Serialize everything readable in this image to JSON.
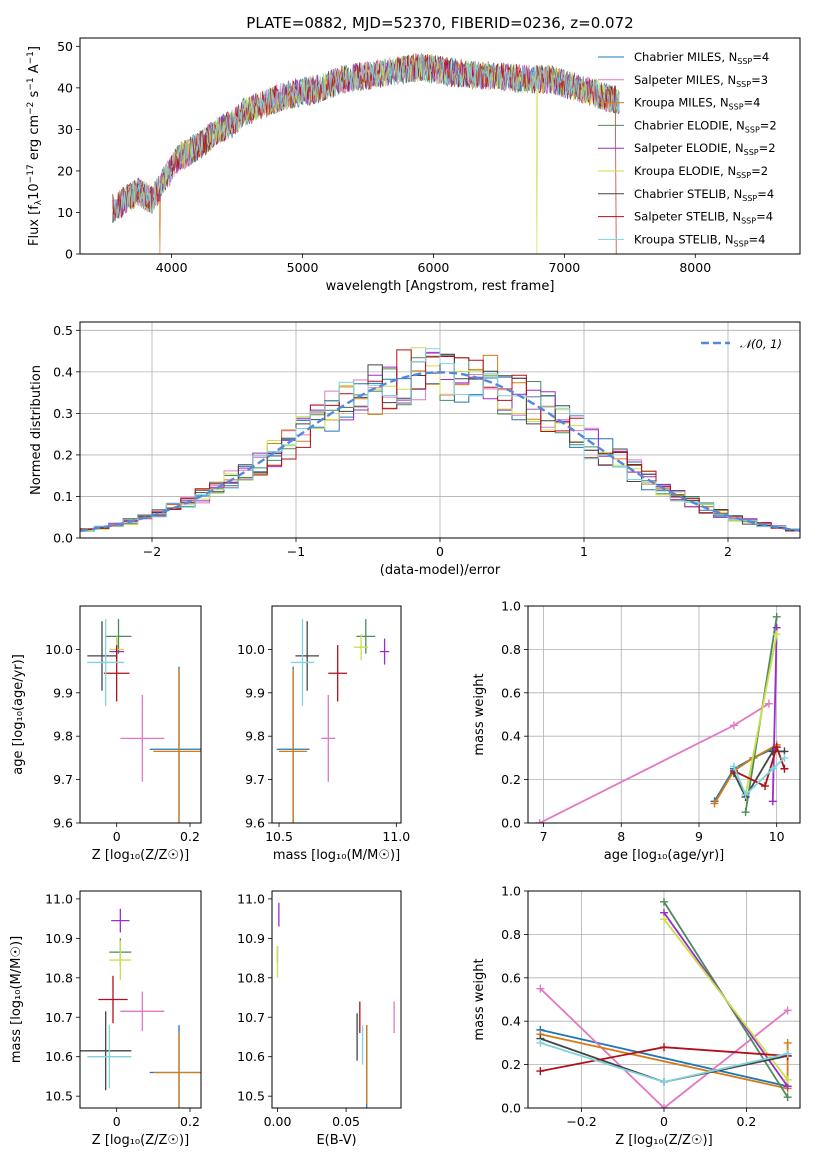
{
  "figure_title": "PLATE=0882, MJD=52370, FIBERID=0236, z=0.072",
  "colors": {
    "Chabrier MILES": "#1f77b4",
    "Salpeter MILES": "#e377c2",
    "Kroupa MILES": "#d67b16",
    "Chabrier ELODIE": "#4d8a5c",
    "Salpeter ELODIE": "#9a2ec8",
    "Kroupa ELODIE": "#c9e04a",
    "Chabrier STELIB": "#444444",
    "Salpeter STELIB": "#b0101a",
    "Kroupa STELIB": "#7fd3dd",
    "normal_curve": "#5588dd"
  },
  "chart_data": [
    {
      "id": "spectrum",
      "type": "line",
      "title": "PLATE=0882, MJD=52370, FIBERID=0236, z=0.072",
      "xlabel": "wavelength [Angstrom, rest frame]",
      "ylabel": "Flux [f_λ10^-17 erg cm^-2 s^-1 A^-1]",
      "xlim": [
        3300,
        8800
      ],
      "ylim": [
        0,
        52
      ],
      "xticks": [
        4000,
        5000,
        6000,
        7000,
        8000
      ],
      "yticks": [
        0,
        10,
        20,
        30,
        40,
        50
      ],
      "legend_position": "top-right",
      "continuum_x": [
        3550,
        3650,
        3750,
        3850,
        3950,
        4050,
        4150,
        4250,
        4350,
        4450,
        4550,
        4700,
        4850,
        5000,
        5150,
        5300,
        5500,
        5700,
        5900,
        6100,
        6300,
        6500,
        6700,
        6900,
        7100,
        7300,
        7400
      ],
      "continuum_y": [
        11,
        13,
        15,
        13,
        18,
        23,
        25,
        27,
        30,
        31,
        34,
        36,
        38,
        39,
        40,
        42,
        43,
        44,
        45,
        44,
        43,
        43,
        42,
        42,
        40,
        38,
        37
      ],
      "series": [
        {
          "name": "Chabrier MILES",
          "nssp": "4"
        },
        {
          "name": "Salpeter MILES",
          "nssp": "3"
        },
        {
          "name": "Kroupa MILES",
          "nssp": "4"
        },
        {
          "name": "Chabrier ELODIE",
          "nssp": "2"
        },
        {
          "name": "Salpeter ELODIE",
          "nssp": "2"
        },
        {
          "name": "Kroupa ELODIE",
          "nssp": "2"
        },
        {
          "name": "Chabrier STELIB",
          "nssp": "4"
        },
        {
          "name": "Salpeter STELIB",
          "nssp": "4"
        },
        {
          "name": "Kroupa STELIB",
          "nssp": "4"
        }
      ]
    },
    {
      "id": "residuals",
      "type": "line",
      "xlabel": "(data-model)/error",
      "ylabel": "Normed distribution",
      "xlim": [
        -2.5,
        2.5
      ],
      "ylim": [
        0,
        0.52
      ],
      "xticks": [
        -2,
        -1,
        0,
        1,
        2
      ],
      "yticks": [
        0.0,
        0.1,
        0.2,
        0.3,
        0.4,
        0.5
      ],
      "grid": true,
      "legend_position": "top-right",
      "normal_label": "N(0,1)",
      "bin_width": 0.1,
      "bin_start": -2.5
    },
    {
      "id": "age-vs-metallicity",
      "type": "scatter",
      "xlabel": "Z [log10(Z/Z☉)]",
      "ylabel": "age [log10(age/yr)]",
      "xlim": [
        -0.1,
        0.23
      ],
      "ylim": [
        9.6,
        10.1
      ],
      "xticks": [
        0.0,
        0.2
      ],
      "yticks": [
        9.6,
        9.7,
        9.8,
        9.9,
        10.0
      ],
      "points": [
        {
          "series": "Chabrier MILES",
          "x": 0.17,
          "y": 9.77,
          "xerr": 0.08,
          "yerr": 0.19
        },
        {
          "series": "Salpeter MILES",
          "x": 0.07,
          "y": 9.795,
          "xerr": 0.06,
          "yerr": 0.1
        },
        {
          "series": "Kroupa MILES",
          "x": 0.17,
          "y": 9.765,
          "xerr": 0.07,
          "yerr": 0.19
        },
        {
          "series": "Chabrier ELODIE",
          "x": 0.005,
          "y": 10.03,
          "xerr": 0.035,
          "yerr": 0.04
        },
        {
          "series": "Salpeter ELODIE",
          "x": 0.0,
          "y": 9.995,
          "xerr": 0.02,
          "yerr": 0.03
        },
        {
          "series": "Kroupa ELODIE",
          "x": 0.0,
          "y": 10.0,
          "xerr": 0.02,
          "yerr": 0.03
        },
        {
          "series": "Chabrier STELIB",
          "x": -0.04,
          "y": 9.985,
          "xerr": 0.04,
          "yerr": 0.08
        },
        {
          "series": "Salpeter STELIB",
          "x": 0.0,
          "y": 9.945,
          "xerr": 0.035,
          "yerr": 0.065
        },
        {
          "series": "Kroupa STELIB",
          "x": -0.03,
          "y": 9.97,
          "xerr": 0.05,
          "yerr": 0.1
        }
      ]
    },
    {
      "id": "age-vs-mass",
      "type": "scatter",
      "xlabel": "mass [log10(M/M☉)]",
      "ylabel": "",
      "xlim": [
        10.47,
        11.02
      ],
      "ylim": [
        9.6,
        10.1
      ],
      "xticks": [
        10.5,
        11.0
      ],
      "yticks": [
        9.6,
        9.7,
        9.8,
        9.9,
        10.0
      ],
      "points": [
        {
          "series": "Chabrier MILES",
          "x": 10.56,
          "y": 9.77,
          "xerr": 0.07,
          "yerr": 0.19
        },
        {
          "series": "Salpeter MILES",
          "x": 10.71,
          "y": 9.795,
          "xerr": 0.03,
          "yerr": 0.1
        },
        {
          "series": "Kroupa MILES",
          "x": 10.56,
          "y": 9.765,
          "xerr": 0.06,
          "yerr": 0.19
        },
        {
          "series": "Chabrier ELODIE",
          "x": 10.87,
          "y": 10.03,
          "xerr": 0.04,
          "yerr": 0.04
        },
        {
          "series": "Salpeter ELODIE",
          "x": 10.95,
          "y": 9.995,
          "xerr": 0.02,
          "yerr": 0.03
        },
        {
          "series": "Kroupa ELODIE",
          "x": 10.85,
          "y": 10.005,
          "xerr": 0.03,
          "yerr": 0.03
        },
        {
          "series": "Chabrier STELIB",
          "x": 10.62,
          "y": 9.985,
          "xerr": 0.05,
          "yerr": 0.08
        },
        {
          "series": "Salpeter STELIB",
          "x": 10.75,
          "y": 9.945,
          "xerr": 0.04,
          "yerr": 0.065
        },
        {
          "series": "Kroupa STELIB",
          "x": 10.6,
          "y": 9.97,
          "xerr": 0.05,
          "yerr": 0.1
        }
      ]
    },
    {
      "id": "mass-weight-vs-age",
      "type": "line",
      "xlabel": "age [log10(age/yr)]",
      "ylabel": "mass weight",
      "xlim": [
        6.8,
        10.3
      ],
      "ylim": [
        0,
        1.0
      ],
      "xticks": [
        7,
        8,
        9,
        10
      ],
      "yticks": [
        0.0,
        0.2,
        0.4,
        0.6,
        0.8,
        1.0
      ],
      "grid": true,
      "series": [
        {
          "name": "Chabrier MILES",
          "x": [
            9.2,
            9.45,
            9.7,
            10.0
          ],
          "y": [
            0.1,
            0.25,
            0.3,
            0.35
          ]
        },
        {
          "name": "Salpeter MILES",
          "x": [
            6.95,
            9.45,
            9.9
          ],
          "y": [
            0.0,
            0.45,
            0.55
          ]
        },
        {
          "name": "Kroupa MILES",
          "x": [
            9.2,
            9.45,
            9.7,
            10.0
          ],
          "y": [
            0.09,
            0.24,
            0.3,
            0.36
          ]
        },
        {
          "name": "Chabrier ELODIE",
          "x": [
            9.6,
            10.0
          ],
          "y": [
            0.05,
            0.95
          ]
        },
        {
          "name": "Salpeter ELODIE",
          "x": [
            9.95,
            10.0
          ],
          "y": [
            0.1,
            0.9
          ]
        },
        {
          "name": "Kroupa ELODIE",
          "x": [
            9.6,
            10.0
          ],
          "y": [
            0.13,
            0.87
          ]
        },
        {
          "name": "Chabrier STELIB",
          "x": [
            9.45,
            9.6,
            9.95,
            10.1
          ],
          "y": [
            0.23,
            0.12,
            0.33,
            0.33
          ]
        },
        {
          "name": "Salpeter STELIB",
          "x": [
            9.45,
            9.85,
            10.0,
            10.1
          ],
          "y": [
            0.24,
            0.17,
            0.35,
            0.25
          ]
        },
        {
          "name": "Kroupa STELIB",
          "x": [
            9.45,
            9.6,
            9.95,
            10.1
          ],
          "y": [
            0.26,
            0.13,
            0.25,
            0.3
          ]
        }
      ]
    },
    {
      "id": "mass-vs-metallicity",
      "type": "scatter",
      "xlabel": "Z [log10(Z/Z☉)]",
      "ylabel": "mass [log10(M/M☉)]",
      "xlim": [
        -0.1,
        0.23
      ],
      "ylim": [
        10.47,
        11.02
      ],
      "xticks": [
        0.0,
        0.2
      ],
      "yticks": [
        10.5,
        10.6,
        10.7,
        10.8,
        10.9,
        11.0
      ],
      "points": [
        {
          "series": "Chabrier MILES",
          "x": 0.17,
          "y": 10.56,
          "xerr": 0.08,
          "yerr": 0.12
        },
        {
          "series": "Salpeter MILES",
          "x": 0.07,
          "y": 10.715,
          "xerr": 0.06,
          "yerr": 0.05
        },
        {
          "series": "Kroupa MILES",
          "x": 0.17,
          "y": 10.56,
          "xerr": 0.07,
          "yerr": 0.1
        },
        {
          "series": "Chabrier ELODIE",
          "x": 0.01,
          "y": 10.865,
          "xerr": 0.03,
          "yerr": 0.035
        },
        {
          "series": "Salpeter ELODIE",
          "x": 0.01,
          "y": 10.945,
          "xerr": 0.025,
          "yerr": 0.03
        },
        {
          "series": "Kroupa ELODIE",
          "x": 0.01,
          "y": 10.845,
          "xerr": 0.03,
          "yerr": 0.05
        },
        {
          "series": "Chabrier STELIB",
          "x": -0.03,
          "y": 10.615,
          "xerr": 0.07,
          "yerr": 0.1
        },
        {
          "series": "Salpeter STELIB",
          "x": -0.01,
          "y": 10.745,
          "xerr": 0.04,
          "yerr": 0.06
        },
        {
          "series": "Kroupa STELIB",
          "x": -0.02,
          "y": 10.6,
          "xerr": 0.06,
          "yerr": 0.08
        }
      ]
    },
    {
      "id": "mass-vs-extinction",
      "type": "scatter",
      "xlabel": "E(B-V)",
      "ylabel": "",
      "xlim": [
        -0.004,
        0.09
      ],
      "ylim": [
        10.47,
        11.02
      ],
      "xticks": [
        0.0,
        0.05
      ],
      "yticks": [
        10.5,
        10.6,
        10.7,
        10.8,
        10.9,
        11.0
      ],
      "points": [
        {
          "series": "Chabrier MILES",
          "x": 0.065,
          "y": 10.56,
          "yerr": 0.12
        },
        {
          "series": "Salpeter MILES",
          "x": 0.085,
          "y": 10.7,
          "yerr": 0.04
        },
        {
          "series": "Kroupa MILES",
          "x": 0.065,
          "y": 10.58,
          "yerr": 0.1
        },
        {
          "series": "Chabrier ELODIE",
          "x": 0.0,
          "y": 10.86,
          "yerr": 0.02
        },
        {
          "series": "Salpeter ELODIE",
          "x": 0.001,
          "y": 10.96,
          "yerr": 0.03
        },
        {
          "series": "Kroupa ELODIE",
          "x": 0.0,
          "y": 10.84,
          "yerr": 0.04
        },
        {
          "series": "Chabrier STELIB",
          "x": 0.058,
          "y": 10.65,
          "yerr": 0.06
        },
        {
          "series": "Salpeter STELIB",
          "x": 0.06,
          "y": 10.7,
          "yerr": 0.04
        },
        {
          "series": "Kroupa STELIB",
          "x": 0.062,
          "y": 10.63,
          "yerr": 0.05
        }
      ]
    },
    {
      "id": "mass-weight-vs-metallicity",
      "type": "line",
      "xlabel": "Z [log10(Z/Z☉)]",
      "ylabel": "mass weight",
      "xlim": [
        -0.33,
        0.33
      ],
      "ylim": [
        0,
        1.0
      ],
      "xticks": [
        -0.2,
        0.0,
        0.2
      ],
      "yticks": [
        0.0,
        0.2,
        0.4,
        0.6,
        0.8,
        1.0
      ],
      "grid": true,
      "series": [
        {
          "name": "Chabrier MILES",
          "x": [
            -0.3,
            0.3
          ],
          "y": [
            0.36,
            0.1
          ]
        },
        {
          "name": "Salpeter MILES",
          "x": [
            -0.3,
            0.0,
            0.3
          ],
          "y": [
            0.55,
            0.0,
            0.45
          ]
        },
        {
          "name": "Kroupa MILES",
          "x": [
            -0.3,
            0.3,
            0.3
          ],
          "y": [
            0.34,
            0.09,
            0.3
          ]
        },
        {
          "name": "Chabrier ELODIE",
          "x": [
            0.0,
            0.3
          ],
          "y": [
            0.95,
            0.05
          ]
        },
        {
          "name": "Salpeter ELODIE",
          "x": [
            0.0,
            0.3
          ],
          "y": [
            0.9,
            0.1
          ]
        },
        {
          "name": "Kroupa ELODIE",
          "x": [
            0.0,
            0.3
          ],
          "y": [
            0.87,
            0.13
          ]
        },
        {
          "name": "Chabrier STELIB",
          "x": [
            -0.3,
            0.0,
            0.3
          ],
          "y": [
            0.32,
            0.12,
            0.24
          ]
        },
        {
          "name": "Salpeter STELIB",
          "x": [
            -0.3,
            0.0,
            0.3
          ],
          "y": [
            0.17,
            0.28,
            0.24
          ]
        },
        {
          "name": "Kroupa STELIB",
          "x": [
            -0.3,
            0.0,
            0.3
          ],
          "y": [
            0.3,
            0.12,
            0.25
          ]
        }
      ]
    }
  ]
}
